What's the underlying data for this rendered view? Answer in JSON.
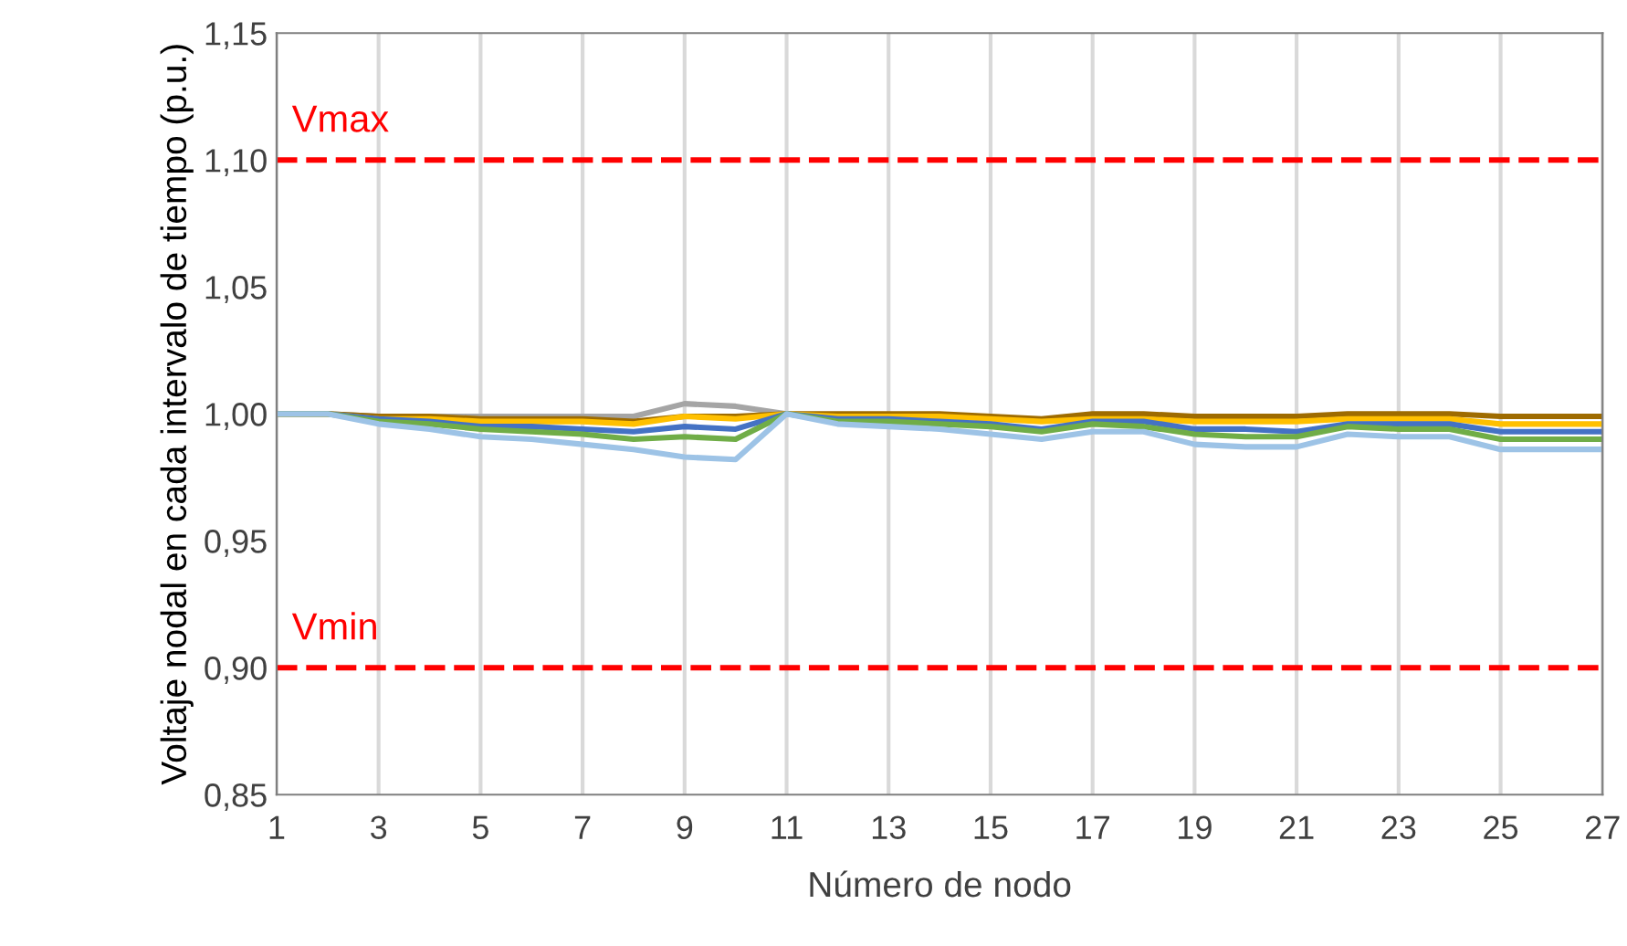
{
  "chart_data": {
    "type": "line",
    "xlabel": "Número de nodo",
    "ylabel": "Voltaje nodal en cada intervalo de tiempo (p.u.)",
    "x": [
      1,
      2,
      3,
      4,
      5,
      6,
      7,
      8,
      9,
      10,
      11,
      12,
      13,
      14,
      15,
      16,
      17,
      18,
      19,
      20,
      21,
      22,
      23,
      24,
      25,
      26,
      27
    ],
    "series": [
      {
        "color": "#a5a5a5",
        "values": [
          1.0,
          1.0,
          0.999,
          0.999,
          0.999,
          0.999,
          0.999,
          0.999,
          1.004,
          1.003,
          1.0,
          null,
          null,
          null,
          null,
          null,
          null,
          null,
          null,
          null,
          null,
          null,
          null,
          null,
          null,
          null,
          null
        ]
      },
      {
        "color": "#9e6b00",
        "values": [
          1.0,
          1.0,
          0.999,
          0.999,
          0.998,
          0.998,
          0.998,
          0.997,
          0.999,
          0.999,
          1.0,
          1.0,
          1.0,
          1.0,
          0.999,
          0.998,
          1.0,
          1.0,
          0.999,
          0.999,
          0.999,
          1.0,
          1.0,
          1.0,
          0.999,
          0.999,
          0.999
        ]
      },
      {
        "color": "#ffc000",
        "values": [
          1.0,
          1.0,
          0.998,
          0.998,
          0.997,
          0.997,
          0.997,
          0.996,
          0.999,
          0.998,
          1.0,
          0.999,
          0.999,
          0.999,
          0.998,
          0.997,
          0.998,
          0.998,
          0.997,
          0.997,
          0.997,
          0.998,
          0.998,
          0.998,
          0.996,
          0.996,
          0.996
        ]
      },
      {
        "color": "#4472c4",
        "values": [
          1.0,
          1.0,
          0.998,
          0.997,
          0.995,
          0.995,
          0.994,
          0.993,
          0.995,
          0.994,
          1.0,
          0.998,
          0.998,
          0.997,
          0.996,
          0.994,
          0.997,
          0.997,
          0.994,
          0.994,
          0.993,
          0.996,
          0.996,
          0.996,
          0.993,
          0.993,
          0.993
        ]
      },
      {
        "color": "#70ad47",
        "values": [
          1.0,
          1.0,
          0.997,
          0.996,
          0.994,
          0.993,
          0.992,
          0.99,
          0.991,
          0.99,
          1.0,
          0.997,
          0.997,
          0.996,
          0.995,
          0.993,
          0.996,
          0.995,
          0.992,
          0.991,
          0.991,
          0.995,
          0.994,
          0.994,
          0.99,
          0.99,
          0.99
        ]
      },
      {
        "color": "#9dc3e6",
        "values": [
          1.0,
          1.0,
          0.996,
          0.994,
          0.991,
          0.99,
          0.988,
          0.986,
          0.983,
          0.982,
          1.0,
          0.996,
          0.995,
          0.994,
          0.992,
          0.99,
          0.993,
          0.993,
          0.988,
          0.987,
          0.987,
          0.992,
          0.991,
          0.991,
          0.986,
          0.986,
          0.986
        ]
      }
    ],
    "xlim": [
      1,
      27
    ],
    "xticks": [
      1,
      3,
      5,
      7,
      9,
      11,
      13,
      15,
      17,
      19,
      21,
      23,
      25,
      27
    ],
    "ylim": [
      0.85,
      1.15
    ],
    "yticks": [
      {
        "value": 0.85,
        "label": "0,85"
      },
      {
        "value": 0.9,
        "label": "0,90"
      },
      {
        "value": 0.95,
        "label": "0,95"
      },
      {
        "value": 1.0,
        "label": "1,00"
      },
      {
        "value": 1.05,
        "label": "1,05"
      },
      {
        "value": 1.1,
        "label": "1,10"
      },
      {
        "value": 1.15,
        "label": "1,15"
      }
    ],
    "grid": "x",
    "marker": "none",
    "line_style": "solid",
    "legend": false,
    "ref_lines": [
      {
        "axis": "y",
        "value": 1.1,
        "label": "Vmax",
        "color": "#ff0000",
        "line_style": "dashed"
      },
      {
        "axis": "y",
        "value": 0.9,
        "label": "Vmin",
        "color": "#ff0000",
        "line_style": "dashed"
      }
    ]
  }
}
